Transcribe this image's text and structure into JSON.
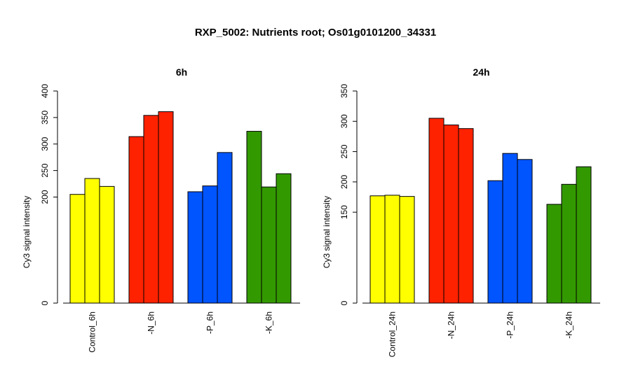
{
  "title": "RXP_5002: Nutrients root; Os01g0101200_34331",
  "chart_data": [
    {
      "type": "bar",
      "title": "6h",
      "ylabel": "Cy3 signal intensity",
      "xlabel": "",
      "ylim": [
        0,
        400
      ],
      "yticks": [
        0,
        200,
        250,
        300,
        350,
        400
      ],
      "groups": [
        {
          "label": "Control_6h",
          "color": "#ffff00",
          "values": [
            205,
            235,
            220
          ]
        },
        {
          "label": "-N_6h",
          "color": "#ff2200",
          "values": [
            314,
            354,
            361
          ]
        },
        {
          "label": "-P_6h",
          "color": "#0055ff",
          "values": [
            210,
            221,
            284
          ]
        },
        {
          "label": "-K_6h",
          "color": "#339900",
          "values": [
            324,
            219,
            244
          ]
        }
      ]
    },
    {
      "type": "bar",
      "title": "24h",
      "ylabel": "Cy3 signal intensity",
      "xlabel": "",
      "ylim": [
        0,
        350
      ],
      "yticks": [
        0,
        150,
        200,
        250,
        300,
        350
      ],
      "groups": [
        {
          "label": "Control_24h",
          "color": "#ffff00",
          "values": [
            177,
            178,
            176
          ]
        },
        {
          "label": "-N_24h",
          "color": "#ff2200",
          "values": [
            305,
            294,
            288
          ]
        },
        {
          "label": "-P_24h",
          "color": "#0055ff",
          "values": [
            202,
            247,
            237
          ]
        },
        {
          "label": "-K_24h",
          "color": "#339900",
          "values": [
            163,
            196,
            225
          ]
        }
      ]
    }
  ]
}
